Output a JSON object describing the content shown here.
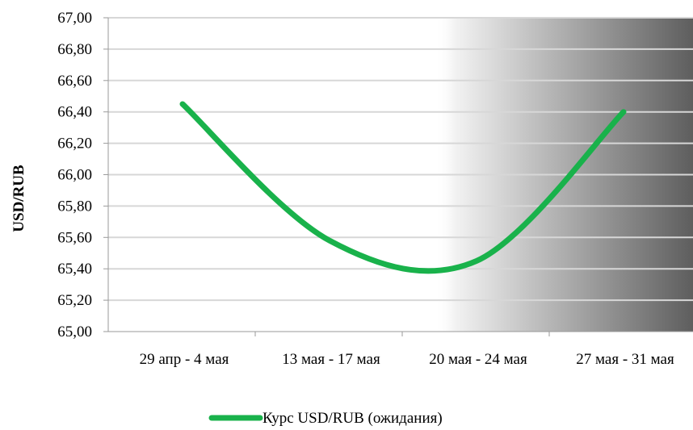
{
  "chart_data": {
    "type": "line",
    "title": "",
    "xlabel": "",
    "ylabel": "USD/RUB",
    "categories": [
      "29 апр - 4 мая",
      "13 мая - 17 мая",
      "20 мая - 24 мая",
      "27 мая - 31 мая"
    ],
    "y_tick_labels": [
      "65,00",
      "65,20",
      "65,40",
      "65,60",
      "65,80",
      "66,00",
      "66,20",
      "66,40",
      "66,60",
      "66,80",
      "67,00"
    ],
    "ylim": [
      65.0,
      67.0
    ],
    "grid": true,
    "legend_position": "bottom",
    "series": [
      {
        "name": "Курс USD/RUB (ожидания)",
        "color": "#19b24b",
        "values": [
          66.45,
          65.58,
          65.45,
          66.4
        ]
      }
    ]
  }
}
